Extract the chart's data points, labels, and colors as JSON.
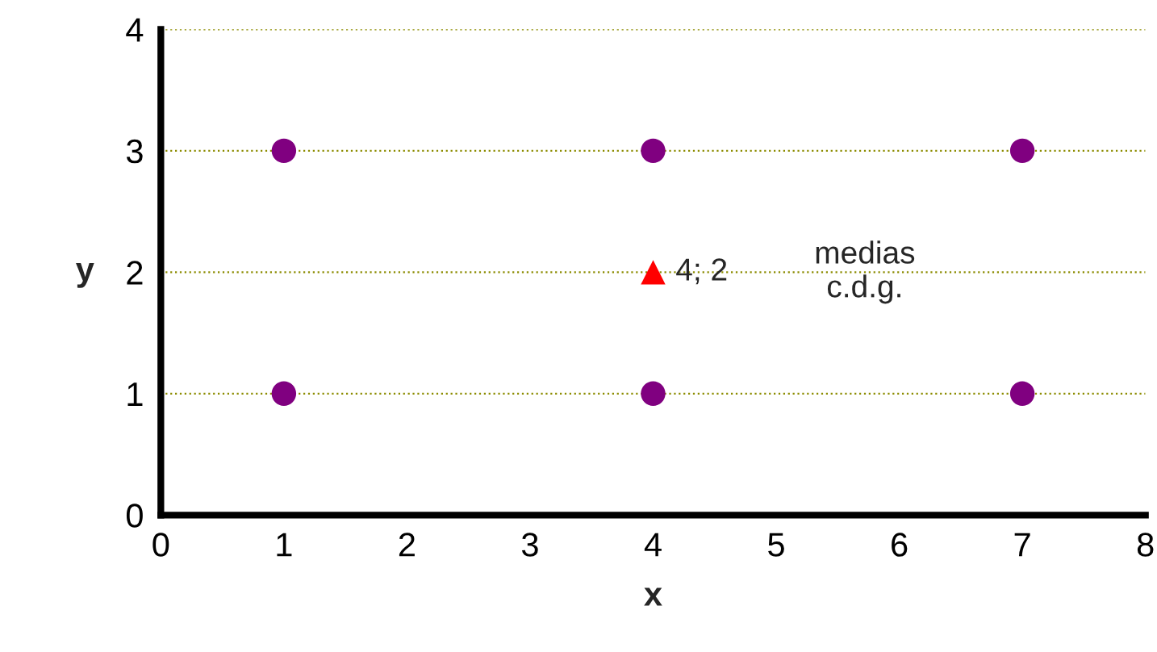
{
  "chart_data": {
    "type": "scatter",
    "xlabel": "x",
    "ylabel": "y",
    "xlim": [
      0,
      8
    ],
    "xticks": [
      0,
      1,
      2,
      3,
      4,
      5,
      6,
      7,
      8
    ],
    "ylim": [
      0,
      4
    ],
    "yticks": [
      0,
      1,
      2,
      3,
      4
    ],
    "grid": "y",
    "legend": false,
    "series": [
      {
        "x": [
          1,
          4,
          7,
          1,
          4,
          7
        ],
        "values": [
          3,
          3,
          3,
          1,
          1,
          1
        ],
        "color": "#800080",
        "marker": "circle"
      },
      {
        "x": [
          4
        ],
        "values": [
          2
        ],
        "color": "#ff0000",
        "marker": "triangle",
        "value_labels": [
          "4; 2"
        ]
      }
    ],
    "annotations": [
      "medias\nc.d.g."
    ]
  }
}
